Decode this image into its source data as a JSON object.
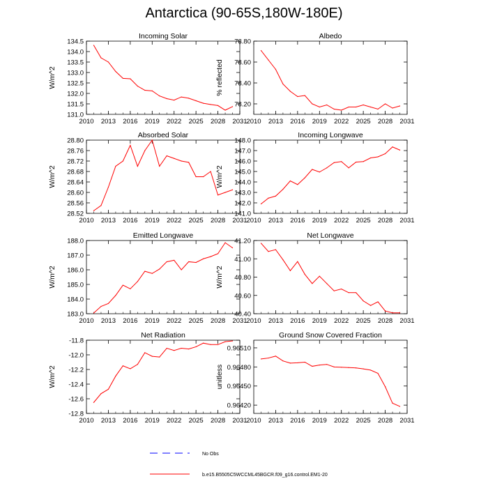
{
  "page": {
    "title": "Antarctica (90-65S,180W-180E)"
  },
  "colors": {
    "model": "#ff0000",
    "obs": "#0000ff",
    "axis": "#000000"
  },
  "legend": {
    "obs_label": "No Obs",
    "model_label": "b.e15.B5505C5WCCML45BGCR.f09_g16.control.EM1-20"
  },
  "chart_data": [
    {
      "type": "line",
      "title": "Incoming Solar",
      "xlabel": "",
      "ylabel": "W/m^2",
      "xlim": [
        2010,
        2031
      ],
      "ylim": [
        131.0,
        134.5
      ],
      "xticks": [
        "2010",
        "2013",
        "2016",
        "2019",
        "2022",
        "2025",
        "2028",
        "2031"
      ],
      "yticks": [
        "131.0",
        "131.5",
        "132.0",
        "132.5",
        "133.0",
        "133.5",
        "134.0",
        "134.5"
      ],
      "x": [
        2011,
        2012,
        2013,
        2014,
        2015,
        2016,
        2017,
        2018,
        2019,
        2020,
        2021,
        2022,
        2023,
        2024,
        2025,
        2026,
        2027,
        2028,
        2029,
        2030
      ],
      "series": [
        {
          "name": "b.e15.B5505C5WCCML45BGCR.f09_g16.control.EM1-20",
          "values": [
            134.3,
            133.7,
            133.5,
            133.05,
            132.72,
            132.7,
            132.35,
            132.15,
            132.12,
            131.88,
            131.75,
            131.68,
            131.83,
            131.77,
            131.65,
            131.53,
            131.47,
            131.42,
            131.2,
            131.37
          ]
        }
      ]
    },
    {
      "type": "line",
      "title": "Albedo",
      "xlabel": "",
      "ylabel": "% reflected",
      "xlim": [
        2010,
        2031
      ],
      "ylim": [
        78.1,
        78.8
      ],
      "xticks": [
        "2010",
        "2013",
        "2016",
        "2019",
        "2022",
        "2025",
        "2028",
        "2031"
      ],
      "yticks": [
        "78.20",
        "78.40",
        "78.60",
        "78.80"
      ],
      "ytick_values": [
        78.2,
        78.4,
        78.6,
        78.8
      ],
      "x": [
        2011,
        2012,
        2013,
        2014,
        2015,
        2016,
        2017,
        2018,
        2019,
        2020,
        2021,
        2022,
        2023,
        2024,
        2025,
        2026,
        2027,
        2028,
        2029,
        2030
      ],
      "series": [
        {
          "name": "b.e15.B5505C5WCCML45BGCR.f09_g16.control.EM1-20",
          "values": [
            78.71,
            78.62,
            78.53,
            78.39,
            78.32,
            78.27,
            78.28,
            78.2,
            78.17,
            78.19,
            78.15,
            78.14,
            78.17,
            78.17,
            78.19,
            78.17,
            78.15,
            78.2,
            78.16,
            78.18
          ]
        }
      ]
    },
    {
      "type": "line",
      "title": "Absorbed Solar",
      "xlabel": "",
      "ylabel": "W/m^2",
      "xlim": [
        2010,
        2031
      ],
      "ylim": [
        28.52,
        28.8
      ],
      "xticks": [
        "2010",
        "2013",
        "2016",
        "2019",
        "2022",
        "2025",
        "2028",
        "2031"
      ],
      "yticks": [
        "28.52",
        "28.56",
        "28.60",
        "28.64",
        "28.68",
        "28.72",
        "28.76",
        "28.80"
      ],
      "x": [
        2011,
        2012,
        2013,
        2014,
        2015,
        2016,
        2017,
        2018,
        2019,
        2020,
        2021,
        2022,
        2023,
        2024,
        2025,
        2026,
        2027,
        2028,
        2029,
        2030
      ],
      "series": [
        {
          "name": "b.e15.B5505C5WCCML45BGCR.f09_g16.control.EM1-20",
          "values": [
            28.53,
            28.55,
            28.62,
            28.7,
            28.72,
            28.78,
            28.7,
            28.76,
            28.8,
            28.7,
            28.74,
            28.73,
            28.72,
            28.715,
            28.66,
            28.66,
            28.68,
            28.59,
            28.6,
            28.61
          ]
        }
      ]
    },
    {
      "type": "line",
      "title": "Incoming Longwave",
      "xlabel": "",
      "ylabel": "W/m^2",
      "xlim": [
        2010,
        2031
      ],
      "ylim": [
        141.0,
        148.0
      ],
      "xticks": [
        "2010",
        "2013",
        "2016",
        "2019",
        "2022",
        "2025",
        "2028",
        "2031"
      ],
      "yticks": [
        "141.0",
        "142.0",
        "143.0",
        "144.0",
        "145.0",
        "146.0",
        "147.0",
        "148.0"
      ],
      "x": [
        2011,
        2012,
        2013,
        2014,
        2015,
        2016,
        2017,
        2018,
        2019,
        2020,
        2021,
        2022,
        2023,
        2024,
        2025,
        2026,
        2027,
        2028,
        2029,
        2030
      ],
      "series": [
        {
          "name": "b.e15.B5505C5WCCML45BGCR.f09_g16.control.EM1-20",
          "values": [
            141.9,
            142.45,
            142.65,
            143.3,
            144.1,
            143.75,
            144.4,
            145.2,
            144.95,
            145.35,
            145.85,
            145.95,
            145.35,
            145.9,
            145.95,
            146.3,
            146.4,
            146.7,
            147.35,
            147.05
          ]
        }
      ]
    },
    {
      "type": "line",
      "title": "Emitted Longwave",
      "xlabel": "",
      "ylabel": "W/m^2",
      "xlim": [
        2010,
        2031
      ],
      "ylim": [
        183.0,
        188.0
      ],
      "xticks": [
        "2010",
        "2013",
        "2016",
        "2019",
        "2022",
        "2025",
        "2028",
        "2031"
      ],
      "yticks": [
        "183.0",
        "184.0",
        "185.0",
        "186.0",
        "187.0",
        "188.0"
      ],
      "x": [
        2011,
        2012,
        2013,
        2014,
        2015,
        2016,
        2017,
        2018,
        2019,
        2020,
        2021,
        2022,
        2023,
        2024,
        2025,
        2026,
        2027,
        2028,
        2029,
        2030
      ],
      "series": [
        {
          "name": "b.e15.B5505C5WCCML45BGCR.f09_g16.control.EM1-20",
          "values": [
            183.05,
            183.5,
            183.7,
            184.25,
            184.95,
            184.7,
            185.2,
            185.9,
            185.75,
            186.05,
            186.55,
            186.65,
            186.0,
            186.55,
            186.5,
            186.75,
            186.9,
            187.1,
            187.85,
            187.5
          ]
        }
      ]
    },
    {
      "type": "line",
      "title": "Net Longwave",
      "xlabel": "",
      "ylabel": "W/m^2",
      "xlim": [
        2010,
        2031
      ],
      "ylim": [
        40.4,
        41.2
      ],
      "xticks": [
        "2010",
        "2013",
        "2016",
        "2019",
        "2022",
        "2025",
        "2028",
        "2031"
      ],
      "yticks": [
        "40.40",
        "40.60",
        "40.80",
        "41.00",
        "41.20"
      ],
      "x": [
        2011,
        2012,
        2013,
        2014,
        2015,
        2016,
        2017,
        2018,
        2019,
        2020,
        2021,
        2022,
        2023,
        2024,
        2025,
        2026,
        2027,
        2028,
        2029,
        2030
      ],
      "series": [
        {
          "name": "b.e15.B5505C5WCCML45BGCR.f09_g16.control.EM1-20",
          "values": [
            41.17,
            41.08,
            41.1,
            40.99,
            40.87,
            40.97,
            40.83,
            40.73,
            40.81,
            40.73,
            40.65,
            40.67,
            40.63,
            40.63,
            40.54,
            40.49,
            40.53,
            40.43,
            40.41,
            40.41
          ]
        }
      ]
    },
    {
      "type": "line",
      "title": "Net Radiation",
      "xlabel": "",
      "ylabel": "W/m^2",
      "xlim": [
        2010,
        2031
      ],
      "ylim": [
        -12.8,
        -11.8
      ],
      "xticks": [
        "2010",
        "2013",
        "2016",
        "2019",
        "2022",
        "2025",
        "2028",
        "2031"
      ],
      "yticks": [
        "-12.8",
        "-12.6",
        "-12.4",
        "-12.2",
        "-12.0",
        "-11.8"
      ],
      "x": [
        2011,
        2012,
        2013,
        2014,
        2015,
        2016,
        2017,
        2018,
        2019,
        2020,
        2021,
        2022,
        2023,
        2024,
        2025,
        2026,
        2027,
        2028,
        2029,
        2030
      ],
      "series": [
        {
          "name": "b.e15.B5505C5WCCML45BGCR.f09_g16.control.EM1-20",
          "values": [
            -12.65,
            -12.53,
            -12.47,
            -12.29,
            -12.15,
            -12.19,
            -12.13,
            -11.97,
            -12.02,
            -12.03,
            -11.91,
            -11.94,
            -11.91,
            -11.92,
            -11.89,
            -11.84,
            -11.86,
            -11.86,
            -11.82,
            -11.81
          ]
        }
      ]
    },
    {
      "type": "line",
      "title": "Ground Snow Covered Fraction",
      "xlabel": "",
      "ylabel": "unitless",
      "xlim": [
        2010,
        2031
      ],
      "ylim": [
        0.96407,
        0.96522
      ],
      "xticks": [
        "2010",
        "2013",
        "2016",
        "2019",
        "2022",
        "2025",
        "2028",
        "2031"
      ],
      "yticks": [
        "0.96420",
        "0.96450",
        "0.96480",
        "0.96510"
      ],
      "ytick_values": [
        0.9642,
        0.9645,
        0.9648,
        0.9651
      ],
      "x": [
        2011,
        2012,
        2013,
        2014,
        2015,
        2016,
        2017,
        2018,
        2019,
        2020,
        2021,
        2022,
        2023,
        2024,
        2025,
        2026,
        2027,
        2028,
        2029,
        2030
      ],
      "series": [
        {
          "name": "b.e15.B5505C5WCCML45BGCR.f09_g16.control.EM1-20",
          "values": [
            0.964925,
            0.96494,
            0.96497,
            0.964895,
            0.96486,
            0.964865,
            0.964875,
            0.96481,
            0.96483,
            0.96484,
            0.9648,
            0.964795,
            0.96479,
            0.964785,
            0.96477,
            0.96475,
            0.9647,
            0.96449,
            0.96423,
            0.96418
          ]
        }
      ]
    }
  ]
}
